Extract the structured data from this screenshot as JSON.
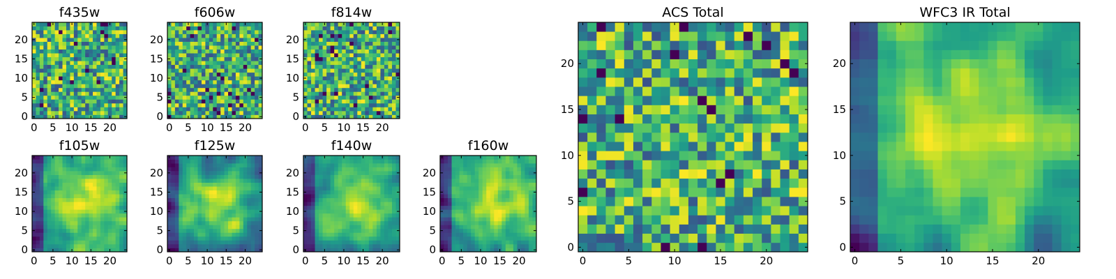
{
  "chart_data": [
    {
      "type": "heatmap",
      "title": "f435w",
      "grid_size": 25,
      "xlim": [
        0,
        24
      ],
      "ylim": [
        0,
        24
      ],
      "xticks": [
        "0",
        "5",
        "10",
        "15",
        "20"
      ],
      "yticks": [
        "0",
        "5",
        "10",
        "15",
        "20"
      ],
      "colormap": "viridis",
      "texture": "noisy",
      "seed": 11
    },
    {
      "type": "heatmap",
      "title": "f606w",
      "grid_size": 25,
      "xlim": [
        0,
        24
      ],
      "ylim": [
        0,
        24
      ],
      "xticks": [
        "0",
        "5",
        "10",
        "15",
        "20"
      ],
      "yticks": [
        "0",
        "5",
        "10",
        "15",
        "20"
      ],
      "colormap": "viridis",
      "texture": "noisy",
      "seed": 23
    },
    {
      "type": "heatmap",
      "title": "f814w",
      "grid_size": 25,
      "xlim": [
        0,
        24
      ],
      "ylim": [
        0,
        24
      ],
      "xticks": [
        "0",
        "5",
        "10",
        "15",
        "20"
      ],
      "yticks": [
        "0",
        "5",
        "10",
        "15",
        "20"
      ],
      "colormap": "viridis",
      "texture": "noisy",
      "seed": 37
    },
    {
      "type": "heatmap",
      "title": "f105w",
      "grid_size": 25,
      "xlim": [
        0,
        24
      ],
      "ylim": [
        0,
        24
      ],
      "xticks": [
        "0",
        "5",
        "10",
        "15",
        "20"
      ],
      "yticks": [
        "0",
        "5",
        "10",
        "15",
        "20"
      ],
      "colormap": "viridis",
      "texture": "smooth",
      "seed": 41
    },
    {
      "type": "heatmap",
      "title": "f125w",
      "grid_size": 25,
      "xlim": [
        0,
        24
      ],
      "ylim": [
        0,
        24
      ],
      "xticks": [
        "0",
        "5",
        "10",
        "15",
        "20"
      ],
      "yticks": [
        "0",
        "5",
        "10",
        "15",
        "20"
      ],
      "colormap": "viridis",
      "texture": "smooth",
      "seed": 53
    },
    {
      "type": "heatmap",
      "title": "f140w",
      "grid_size": 25,
      "xlim": [
        0,
        24
      ],
      "ylim": [
        0,
        24
      ],
      "xticks": [
        "0",
        "5",
        "10",
        "15",
        "20"
      ],
      "yticks": [
        "0",
        "5",
        "10",
        "15",
        "20"
      ],
      "colormap": "viridis",
      "texture": "smooth",
      "seed": 67
    },
    {
      "type": "heatmap",
      "title": "f160w",
      "grid_size": 25,
      "xlim": [
        0,
        24
      ],
      "ylim": [
        0,
        24
      ],
      "xticks": [
        "0",
        "5",
        "10",
        "15",
        "20"
      ],
      "yticks": [
        "0",
        "5",
        "10",
        "15",
        "20"
      ],
      "colormap": "viridis",
      "texture": "smooth",
      "seed": 79
    },
    {
      "type": "heatmap",
      "title": "ACS Total",
      "grid_size": 25,
      "xlim": [
        0,
        24
      ],
      "ylim": [
        0,
        24
      ],
      "xticks": [
        "0",
        "5",
        "10",
        "15",
        "20"
      ],
      "yticks": [
        "0",
        "5",
        "10",
        "15",
        "20"
      ],
      "colormap": "viridis",
      "texture": "noisy",
      "seed": 97
    },
    {
      "type": "heatmap",
      "title": "WFC3 IR Total",
      "grid_size": 25,
      "xlim": [
        0,
        24
      ],
      "ylim": [
        0,
        24
      ],
      "xticks": [
        "0",
        "5",
        "10",
        "15",
        "20"
      ],
      "yticks": [
        "0",
        "5",
        "10",
        "15",
        "20"
      ],
      "colormap": "viridis",
      "texture": "smooth",
      "seed": 131
    }
  ],
  "colors": {
    "colormap_stops": [
      "#440154",
      "#482878",
      "#3e4989",
      "#31688e",
      "#26828e",
      "#1f9e89",
      "#35b779",
      "#6ece58",
      "#b5de2b",
      "#fde725"
    ]
  }
}
